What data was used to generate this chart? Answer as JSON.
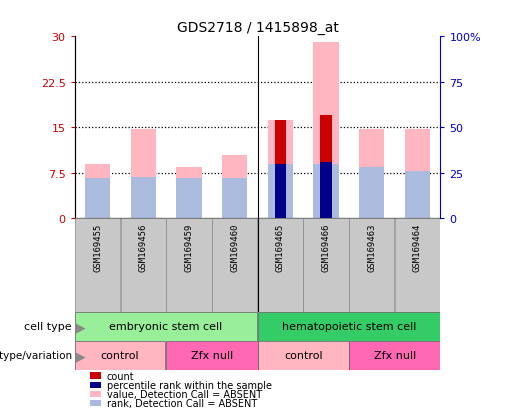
{
  "title": "GDS2718 / 1415898_at",
  "samples": [
    "GSM169455",
    "GSM169456",
    "GSM169459",
    "GSM169460",
    "GSM169465",
    "GSM169466",
    "GSM169463",
    "GSM169464"
  ],
  "ylim_left": [
    0,
    30
  ],
  "ylim_right": [
    0,
    100
  ],
  "yticks_left": [
    0,
    7.5,
    15,
    22.5,
    30
  ],
  "yticks_right": [
    0,
    25,
    50,
    75,
    100
  ],
  "ytick_labels_left": [
    "0",
    "7.5",
    "15",
    "22.5",
    "30"
  ],
  "ytick_labels_right": [
    "0",
    "25",
    "50",
    "75",
    "100%"
  ],
  "pink_bar_heights": [
    9.0,
    14.8,
    8.5,
    10.5,
    16.2,
    29.0,
    14.7,
    14.7
  ],
  "light_blue_bar_heights_pct": [
    22,
    23,
    22,
    22,
    30,
    30,
    28,
    26
  ],
  "red_bar_heights": [
    0,
    0,
    0,
    0,
    16.2,
    17.0,
    0,
    0
  ],
  "blue_bar_heights_pct": [
    0,
    0,
    0,
    0,
    30,
    31,
    0,
    0
  ],
  "narrow_bar_width": 0.25,
  "wide_bar_width": 0.55,
  "left_axis_color": "#CC0000",
  "right_axis_color": "#0000CC",
  "cell_type_labels": [
    "embryonic stem cell",
    "hematopoietic stem cell"
  ],
  "cell_type_color": "#90EE90",
  "cell_type_bright_color": "#33CC33",
  "genotype_labels": [
    "control",
    "Zfx null",
    "control",
    "Zfx null"
  ],
  "genotype_colors": [
    "#FFB6C1",
    "#FF69B4",
    "#FFB6C1",
    "#FF69B4"
  ],
  "legend_labels": [
    "count",
    "percentile rank within the sample",
    "value, Detection Call = ABSENT",
    "rank, Detection Call = ABSENT"
  ],
  "legend_colors": [
    "#CC0000",
    "#00008B",
    "#FFB6C1",
    "#AABBDD"
  ],
  "pink_color": "#FFB6C1",
  "lightblue_color": "#AABBDD",
  "red_color": "#CC0000",
  "blue_color": "#00008B"
}
